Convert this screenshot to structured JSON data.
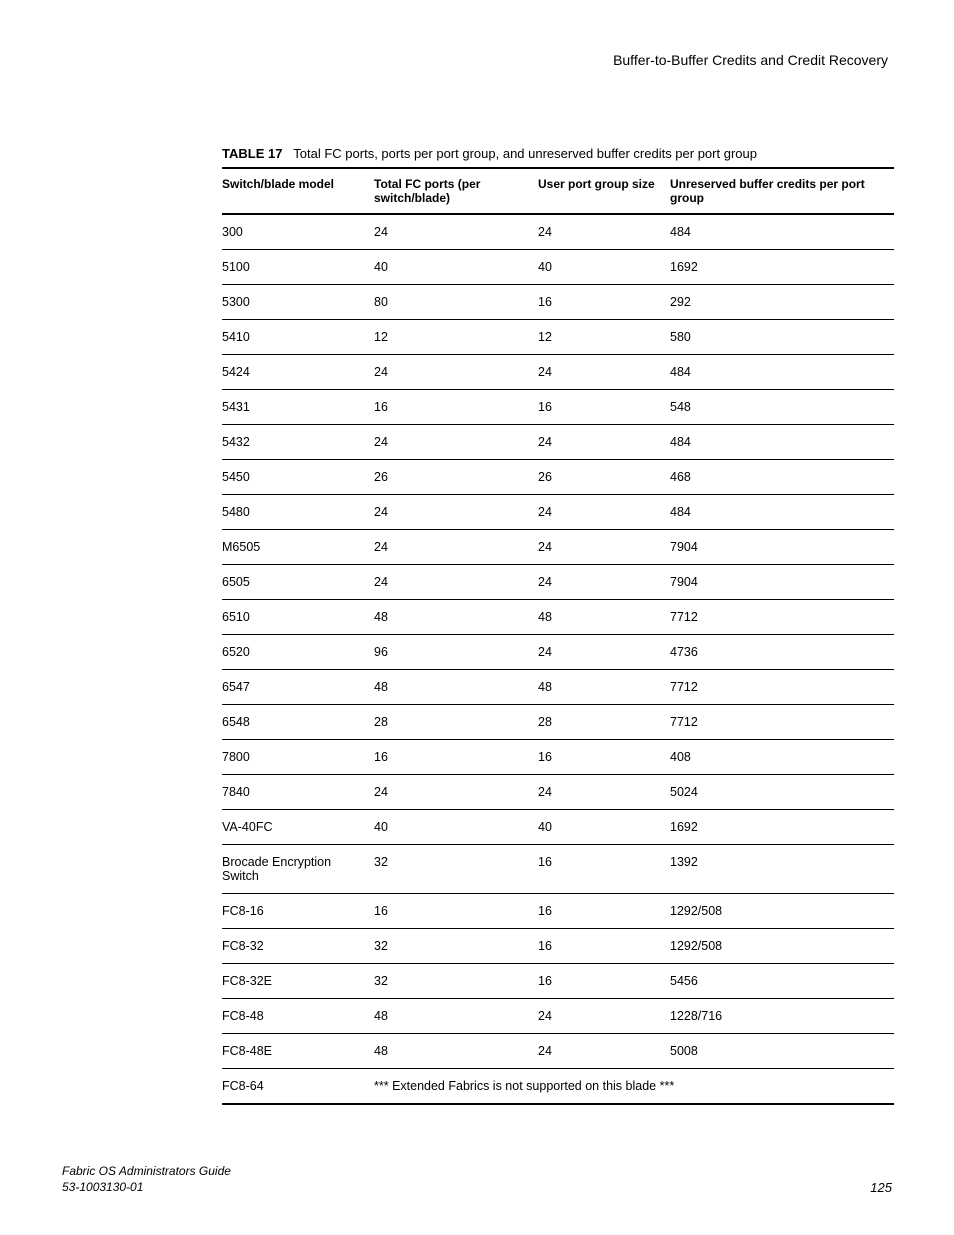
{
  "header": {
    "section_title": "Buffer-to-Buffer Credits and Credit Recovery"
  },
  "table": {
    "caption_label": "TABLE 17",
    "caption_text": "Total FC ports, ports per port group, and unreserved buffer credits per port group",
    "columns": {
      "model": "Switch/blade model",
      "total_ports": "Total FC ports (per switch/blade)",
      "group_size": "User port group size",
      "credits": "Unreserved buffer credits per port group"
    },
    "rows": [
      {
        "model": "300",
        "total_ports": "24",
        "group_size": "24",
        "credits": "484"
      },
      {
        "model": "5100",
        "total_ports": "40",
        "group_size": "40",
        "credits": "1692"
      },
      {
        "model": "5300",
        "total_ports": "80",
        "group_size": "16",
        "credits": "292"
      },
      {
        "model": "5410",
        "total_ports": "12",
        "group_size": "12",
        "credits": "580"
      },
      {
        "model": "5424",
        "total_ports": "24",
        "group_size": "24",
        "credits": "484"
      },
      {
        "model": "5431",
        "total_ports": "16",
        "group_size": "16",
        "credits": "548"
      },
      {
        "model": "5432",
        "total_ports": "24",
        "group_size": "24",
        "credits": "484"
      },
      {
        "model": "5450",
        "total_ports": "26",
        "group_size": "26",
        "credits": "468"
      },
      {
        "model": "5480",
        "total_ports": "24",
        "group_size": "24",
        "credits": "484"
      },
      {
        "model": "M6505",
        "total_ports": "24",
        "group_size": "24",
        "credits": "7904"
      },
      {
        "model": "6505",
        "total_ports": "24",
        "group_size": "24",
        "credits": "7904"
      },
      {
        "model": "6510",
        "total_ports": "48",
        "group_size": "48",
        "credits": "7712"
      },
      {
        "model": "6520",
        "total_ports": "96",
        "group_size": "24",
        "credits": "4736"
      },
      {
        "model": "6547",
        "total_ports": "48",
        "group_size": "48",
        "credits": "7712"
      },
      {
        "model": "6548",
        "total_ports": "28",
        "group_size": "28",
        "credits": "7712"
      },
      {
        "model": "7800",
        "total_ports": "16",
        "group_size": "16",
        "credits": "408"
      },
      {
        "model": "7840",
        "total_ports": "24",
        "group_size": "24",
        "credits": "5024"
      },
      {
        "model": "VA-40FC",
        "total_ports": "40",
        "group_size": "40",
        "credits": "1692"
      },
      {
        "model": "Brocade Encryption Switch",
        "total_ports": "32",
        "group_size": "16",
        "credits": "1392"
      },
      {
        "model": "FC8-16",
        "total_ports": "16",
        "group_size": "16",
        "credits": "1292/508"
      },
      {
        "model": "FC8-32",
        "total_ports": "32",
        "group_size": "16",
        "credits": "1292/508"
      },
      {
        "model": "FC8-32E",
        "total_ports": "32",
        "group_size": "16",
        "credits": "5456"
      },
      {
        "model": "FC8-48",
        "total_ports": "48",
        "group_size": "24",
        "credits": "1228/716"
      },
      {
        "model": "FC8-48E",
        "total_ports": "48",
        "group_size": "24",
        "credits": "5008"
      },
      {
        "model": "FC8-64",
        "span_text": "*** Extended Fabrics is not supported on this blade ***"
      }
    ]
  },
  "footer": {
    "guide_title": "Fabric OS Administrators Guide",
    "doc_number": "53-1003130-01",
    "page_number": "125"
  }
}
